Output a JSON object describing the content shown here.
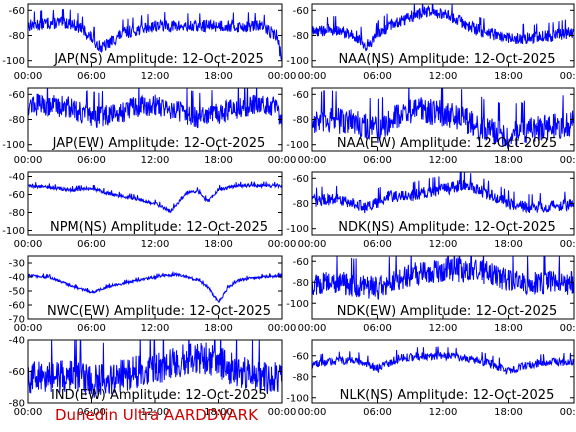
{
  "footer": {
    "text": "Dunedin Ultra AARDDVARK"
  },
  "styling": {
    "trace_color": "#0000ff",
    "frame_color": "#000000",
    "footer_color": "#cc0000"
  },
  "chart_data": [
    {
      "type": "line",
      "title": "JAP(NS) Amplitude: 12-Oct-2025",
      "x_ticks": [
        "00:00",
        "06:00",
        "12:00",
        "18:00",
        "00:00"
      ],
      "ylim": [
        -105,
        -55
      ],
      "y_ticks": [
        -100,
        -80,
        -60
      ],
      "grid": false,
      "series": [
        {
          "x_hours": [
            0,
            2,
            4,
            5,
            7,
            9,
            12,
            15,
            18,
            20,
            22,
            23.5,
            24
          ],
          "values": [
            -72,
            -70,
            -70,
            -74,
            -90,
            -78,
            -72,
            -73,
            -72,
            -73,
            -72,
            -80,
            -100
          ],
          "spread": 10
        }
      ]
    },
    {
      "type": "line",
      "title": "NAA(NS) Amplitude: 12-Oct-2025",
      "x_ticks": [
        "00:00",
        "06:00",
        "12:00",
        "18:00",
        "00:00"
      ],
      "ylim": [
        -105,
        -55
      ],
      "y_ticks": [
        -100,
        -80,
        -60
      ],
      "grid": false,
      "series": [
        {
          "x_hours": [
            0,
            2,
            4,
            5,
            7,
            9,
            11,
            13,
            15,
            18,
            20,
            22,
            24
          ],
          "values": [
            -77,
            -75,
            -80,
            -88,
            -72,
            -65,
            -60,
            -66,
            -75,
            -82,
            -82,
            -80,
            -77
          ],
          "spread": 10
        }
      ]
    },
    {
      "type": "line",
      "title": "JAP(EW) Amplitude: 12-Oct-2025",
      "x_ticks": [
        "00:00",
        "06:00",
        "12:00",
        "18:00",
        "00:00"
      ],
      "ylim": [
        -105,
        -55
      ],
      "y_ticks": [
        -100,
        -80,
        -60
      ],
      "grid": false,
      "series": [
        {
          "x_hours": [
            0,
            2,
            4,
            6,
            8,
            10,
            12,
            14,
            16,
            18,
            20,
            22,
            23.5,
            24
          ],
          "values": [
            -68,
            -68,
            -70,
            -78,
            -76,
            -70,
            -68,
            -72,
            -78,
            -75,
            -70,
            -68,
            -68,
            -85
          ],
          "spread": 18
        }
      ]
    },
    {
      "type": "line",
      "title": "NAA(EW) Amplitude: 12-Oct-2025",
      "x_ticks": [
        "00:00",
        "06:00",
        "12:00",
        "18:00",
        "00:00"
      ],
      "ylim": [
        -105,
        -55
      ],
      "y_ticks": [
        -100,
        -80,
        -60
      ],
      "grid": false,
      "series": [
        {
          "x_hours": [
            0,
            2,
            4,
            6,
            8,
            10,
            12,
            14,
            16,
            18,
            20,
            22,
            24
          ],
          "values": [
            -82,
            -80,
            -82,
            -88,
            -75,
            -72,
            -75,
            -80,
            -88,
            -92,
            -88,
            -85,
            -82
          ],
          "spread": 22
        }
      ]
    },
    {
      "type": "line",
      "title": "NPM(NS) Amplitude: 12-Oct-2025",
      "x_ticks": [
        "00:00",
        "06:00",
        "12:00",
        "18:00",
        "00:00"
      ],
      "ylim": [
        -105,
        -35
      ],
      "y_ticks": [
        -100,
        -80,
        -60,
        -40
      ],
      "grid": false,
      "series": [
        {
          "x_hours": [
            0,
            2,
            4,
            6,
            8,
            10,
            12,
            13.5,
            15,
            16,
            17,
            18,
            20,
            22,
            24
          ],
          "values": [
            -50,
            -52,
            -55,
            -53,
            -60,
            -64,
            -70,
            -78,
            -58,
            -56,
            -68,
            -54,
            -50,
            -50,
            -50
          ],
          "spread": 4
        }
      ]
    },
    {
      "type": "line",
      "title": "NDK(NS) Amplitude: 12-Oct-2025",
      "x_ticks": [
        "00:00",
        "06:00",
        "12:00",
        "18:00",
        "00:00"
      ],
      "ylim": [
        -105,
        -55
      ],
      "y_ticks": [
        -100,
        -80,
        -60
      ],
      "grid": false,
      "series": [
        {
          "x_hours": [
            0,
            2,
            4,
            5,
            7,
            9,
            11,
            13,
            14,
            16,
            18,
            20,
            22,
            24
          ],
          "values": [
            -78,
            -76,
            -80,
            -84,
            -74,
            -74,
            -70,
            -67,
            -64,
            -72,
            -80,
            -83,
            -82,
            -80
          ],
          "spread": 10
        }
      ]
    },
    {
      "type": "line",
      "title": "NWC(EW) Amplitude: 12-Oct-2025",
      "x_ticks": [
        "00:00",
        "06:00",
        "12:00",
        "18:00",
        "00:00"
      ],
      "ylim": [
        -70,
        -25
      ],
      "y_ticks": [
        -70,
        -60,
        -50,
        -40,
        -30
      ],
      "grid": false,
      "series": [
        {
          "x_hours": [
            0,
            2,
            4,
            6,
            8,
            10,
            12,
            14,
            16,
            17,
            18,
            19,
            20,
            22,
            24
          ],
          "values": [
            -39,
            -40,
            -46,
            -51,
            -46,
            -43,
            -40,
            -38,
            -42,
            -47,
            -58,
            -47,
            -42,
            -40,
            -39
          ],
          "spread": 2
        }
      ]
    },
    {
      "type": "line",
      "title": "NDK(EW) Amplitude: 12-Oct-2025",
      "x_ticks": [
        "00:00",
        "06:00",
        "12:00",
        "18:00",
        "00:00"
      ],
      "ylim": [
        -115,
        -55
      ],
      "y_ticks": [
        -100,
        -80,
        -60
      ],
      "grid": false,
      "series": [
        {
          "x_hours": [
            0,
            2,
            4,
            6,
            8,
            10,
            12,
            14,
            16,
            18,
            20,
            22,
            24
          ],
          "values": [
            -82,
            -80,
            -82,
            -85,
            -76,
            -70,
            -68,
            -68,
            -70,
            -78,
            -80,
            -80,
            -80
          ],
          "spread": 24
        }
      ]
    },
    {
      "type": "line",
      "title": "IND(EW) Amplitude: 12-Oct-2025",
      "x_ticks": [
        "00:00",
        "06:00",
        "12:00",
        "18:00",
        "00:00"
      ],
      "ylim": [
        -80,
        -40
      ],
      "y_ticks": [
        -80,
        -60,
        -40
      ],
      "grid": false,
      "series": [
        {
          "x_hours": [
            0,
            2,
            4,
            6,
            8,
            10,
            12,
            14,
            16,
            18,
            20,
            22,
            24
          ],
          "values": [
            -63,
            -63,
            -62,
            -66,
            -64,
            -60,
            -57,
            -54,
            -50,
            -54,
            -60,
            -63,
            -64
          ],
          "spread": 22
        }
      ]
    },
    {
      "type": "line",
      "title": "NLK(NS) Amplitude: 12-Oct-2025",
      "x_ticks": [
        "00:00",
        "06:00",
        "12:00",
        "18:00",
        "00:00"
      ],
      "ylim": [
        -105,
        -45
      ],
      "y_ticks": [
        -100,
        -80,
        -60
      ],
      "grid": false,
      "series": [
        {
          "x_hours": [
            0,
            2,
            4,
            6,
            8,
            10,
            12,
            14,
            16,
            18,
            20,
            22,
            24
          ],
          "values": [
            -68,
            -65,
            -64,
            -72,
            -62,
            -60,
            -60,
            -62,
            -66,
            -74,
            -68,
            -66,
            -66
          ],
          "spread": 8
        }
      ]
    }
  ]
}
